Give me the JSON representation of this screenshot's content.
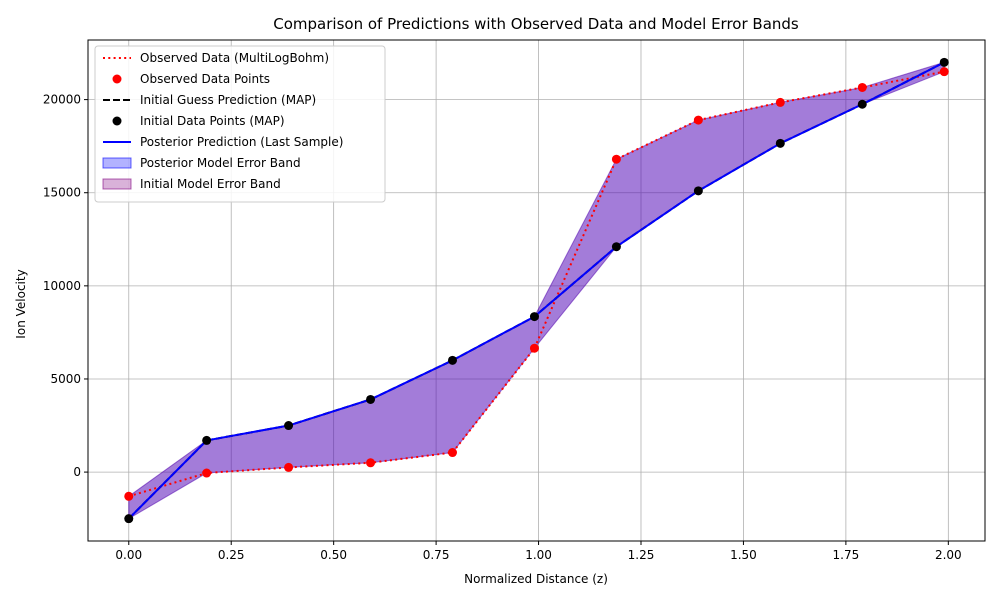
{
  "chart_data": {
    "type": "line",
    "title": "Comparison of Predictions with Observed Data and Model Error Bands",
    "xlabel": "Normalized Distance (z)",
    "ylabel": "Ion Velocity",
    "xlim": [
      -0.0995,
      2.0895
    ],
    "ylim": [
      -3700,
      23200
    ],
    "xticks": [
      0.0,
      0.25,
      0.5,
      0.75,
      1.0,
      1.25,
      1.5,
      1.75,
      2.0
    ],
    "xtick_labels": [
      "0.00",
      "0.25",
      "0.50",
      "0.75",
      "1.00",
      "1.25",
      "1.50",
      "1.75",
      "2.00"
    ],
    "yticks": [
      0,
      5000,
      10000,
      15000,
      20000
    ],
    "ytick_labels": [
      "0",
      "5000",
      "10000",
      "15000",
      "20000"
    ],
    "grid": true,
    "legend_position": "top-left",
    "x": [
      0.0,
      0.19,
      0.39,
      0.59,
      0.79,
      0.99,
      1.19,
      1.39,
      1.59,
      1.79,
      1.99
    ],
    "series": [
      {
        "name": "Observed Data (MultiLogBohm)",
        "kind": "line",
        "style": "dotted",
        "color": "#ff0000",
        "values": [
          -1300,
          -50,
          250,
          500,
          1050,
          6650,
          16800,
          18900,
          19850,
          20650,
          21500
        ]
      },
      {
        "name": "Observed Data Points",
        "kind": "scatter",
        "color": "#ff0000",
        "values": [
          -1300,
          -50,
          250,
          500,
          1050,
          6650,
          16800,
          18900,
          19850,
          20650,
          21500
        ]
      },
      {
        "name": "Initial Guess Prediction (MAP)",
        "kind": "line",
        "style": "dashed",
        "color": "#000000",
        "values": [
          -2500,
          1700,
          2500,
          3900,
          6000,
          8350,
          12100,
          15100,
          17650,
          19750,
          22000
        ]
      },
      {
        "name": "Initial Data Points (MAP)",
        "kind": "scatter",
        "color": "#000000",
        "values": [
          -2500,
          1700,
          2500,
          3900,
          6000,
          8350,
          12100,
          15100,
          17650,
          19750,
          22000
        ]
      },
      {
        "name": "Posterior Prediction (Last Sample)",
        "kind": "line",
        "style": "solid",
        "color": "#0000ff",
        "values": [
          -2500,
          1700,
          2500,
          3900,
          6000,
          8350,
          12100,
          15100,
          17650,
          19750,
          22000
        ]
      }
    ],
    "bands": [
      {
        "name": "Posterior Model Error Band",
        "color": "#0000ff",
        "alpha": 0.3,
        "lower": [
          -2500,
          -50,
          250,
          500,
          1050,
          6650,
          12100,
          15100,
          17650,
          19750,
          21500
        ],
        "upper": [
          -1300,
          1700,
          2500,
          3900,
          6000,
          8350,
          16800,
          18900,
          19850,
          20650,
          22000
        ]
      },
      {
        "name": "Initial Model Error Band",
        "color": "#800080",
        "alpha": 0.3,
        "lower": [
          -2500,
          -50,
          250,
          500,
          1050,
          6650,
          12100,
          15100,
          17650,
          19750,
          21500
        ],
        "upper": [
          -1300,
          1700,
          2500,
          3900,
          6000,
          8350,
          16800,
          18900,
          19850,
          20650,
          22000
        ]
      }
    ]
  }
}
